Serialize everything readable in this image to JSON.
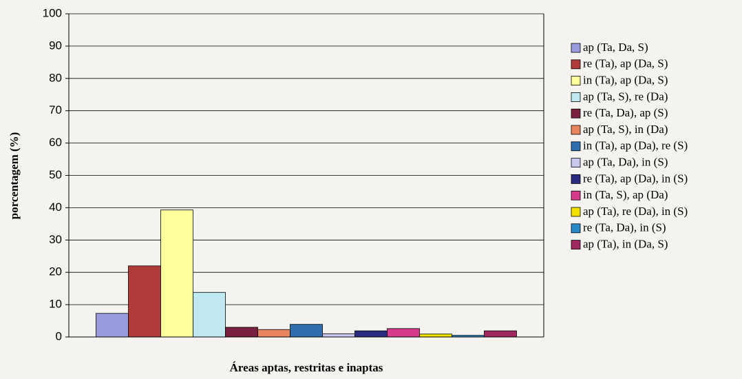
{
  "chart_data": {
    "type": "bar",
    "xlabel": "Áreas aptas, restritas e inaptas",
    "ylabel": "porcentagem (%)",
    "categories": [
      null
    ],
    "series": [
      {
        "name": "ap (Ta, Da, S)",
        "color": "#9a9ade",
        "values": [
          7.3
        ]
      },
      {
        "name": "re (Ta), ap (Da, S)",
        "color": "#b03a3a",
        "values": [
          22
        ]
      },
      {
        "name": "in (Ta), ap (Da, S)",
        "color": "#ffff9c",
        "values": [
          39.3
        ]
      },
      {
        "name": "ap (Ta, S), re (Da)",
        "color": "#bfe8f0",
        "values": [
          13.8
        ]
      },
      {
        "name": "re (Ta, Da), ap (S)",
        "color": "#7a2040",
        "values": [
          3
        ]
      },
      {
        "name": "ap (Ta, S), in (Da)",
        "color": "#e8845e",
        "values": [
          2.3
        ]
      },
      {
        "name": "in (Ta), ap (Da), re (S)",
        "color": "#2f6fb0",
        "values": [
          3.9
        ]
      },
      {
        "name": "ap (Ta, Da), in (S)",
        "color": "#c8c8ee",
        "values": [
          1
        ]
      },
      {
        "name": "re (Ta), ap (Da), in (S)",
        "color": "#2a2a80",
        "values": [
          1.9
        ]
      },
      {
        "name": "in (Ta, S), ap (Da)",
        "color": "#d63a8a",
        "values": [
          2.6
        ]
      },
      {
        "name": "ap (Ta), re (Da), in (S)",
        "color": "#f2e000",
        "values": [
          0.9
        ]
      },
      {
        "name": "re (Ta, Da), in (S)",
        "color": "#2a8ac8",
        "values": [
          0.5
        ]
      },
      {
        "name": "ap (Ta), in (Da, S)",
        "color": "#a02a60",
        "values": [
          1.9
        ]
      }
    ],
    "ylim": [
      0,
      100
    ],
    "yticks": [
      0,
      10,
      20,
      30,
      40,
      50,
      60,
      70,
      80,
      90,
      100
    ],
    "grid": true,
    "legend": "right"
  }
}
